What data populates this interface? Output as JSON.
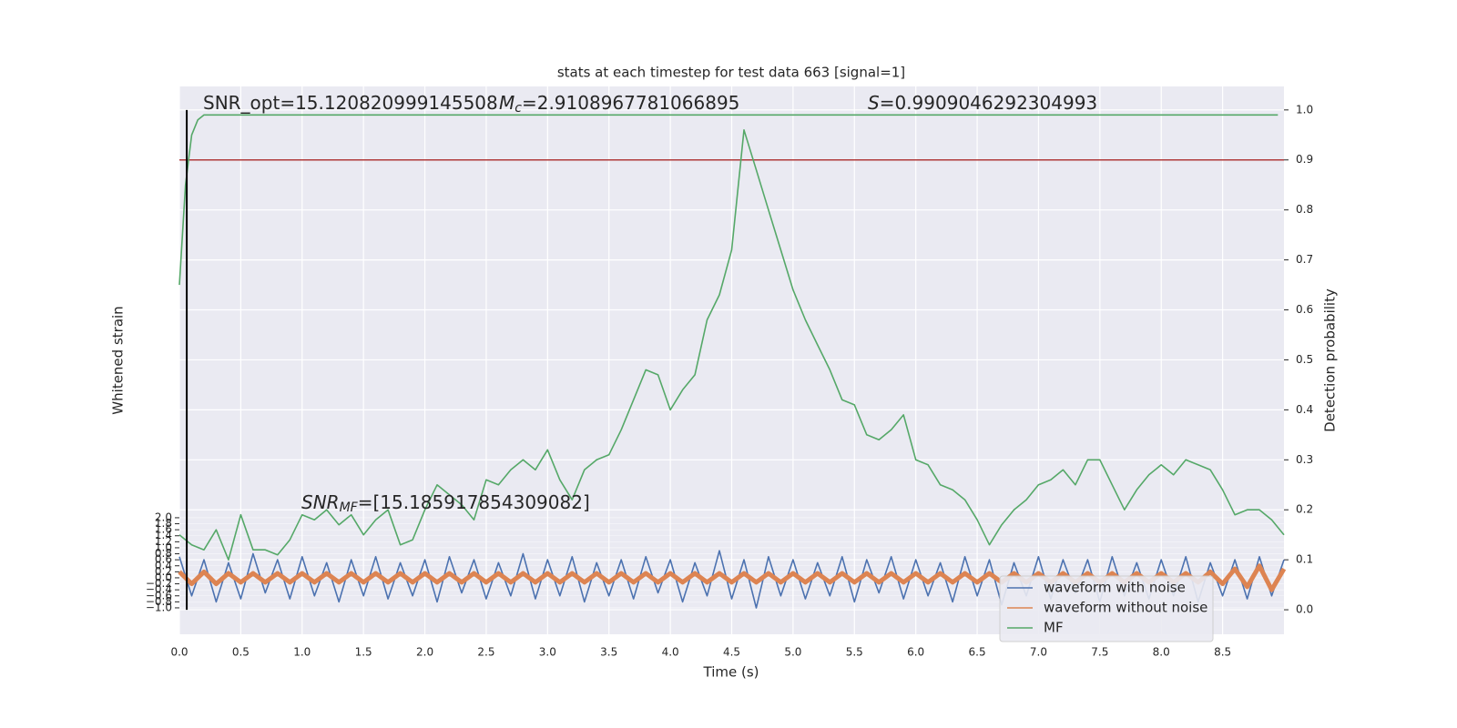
{
  "chart_data": {
    "type": "line",
    "title": "stats at each timestep for test data 663 [signal=1]",
    "xlabel": "Time (s)",
    "ylabel": "Whitened strain",
    "y2label": "Detection probability",
    "annotations": [
      {
        "text": "SNR_opt=15.120820999145508"
      },
      {
        "symbol": "M",
        "sub": "c",
        "text": "=2.9108967781066895"
      },
      {
        "symbol": "S",
        "text": "=0.9909046292304993"
      },
      {
        "symbol": "SNR",
        "sub": "MF",
        "text": "=[15.185917854309082]"
      }
    ],
    "xlim": [
      0,
      9.0
    ],
    "ylim": [
      -1.88,
      16.36
    ],
    "y2lim": [
      -0.049,
      1.047
    ],
    "xticks": [
      {
        "value": 0,
        "label": "0.0"
      },
      0.5,
      {
        "value": 1,
        "label": "1.0"
      },
      1.5,
      {
        "value": 2,
        "label": "2.0"
      },
      2.5,
      {
        "value": 3,
        "label": "3.0"
      },
      3.5,
      {
        "value": 4,
        "label": "4.0"
      },
      4.5,
      {
        "value": 5,
        "label": "5.0"
      },
      5.5,
      {
        "value": 6,
        "label": "6.0"
      },
      6.5,
      {
        "value": 7,
        "label": "7.0"
      },
      7.5,
      {
        "value": 8,
        "label": "8.0"
      },
      8.5
    ],
    "yticks": [
      {
        "value": -1.0,
        "label": "−1.0"
      },
      {
        "value": -0.8,
        "label": "−0.8"
      },
      {
        "value": -0.6,
        "label": "−0.6"
      },
      {
        "value": -0.4,
        "label": "−0.4"
      },
      {
        "value": -0.2,
        "label": "−0.2"
      },
      {
        "value": 0,
        "label": "0.0"
      },
      {
        "value": 0.2,
        "label": "0.2"
      },
      {
        "value": 0.4,
        "label": "0.4"
      },
      {
        "value": 0.6,
        "label": "0.6"
      },
      {
        "value": 0.8,
        "label": "0.8"
      },
      {
        "value": 1,
        "label": "1.0"
      },
      {
        "value": 1.2,
        "label": "1.2"
      },
      {
        "value": 1.4,
        "label": "1.4"
      },
      {
        "value": 1.6,
        "label": "1.6"
      },
      {
        "value": 1.8,
        "label": "1.8"
      },
      {
        "value": 2,
        "label": "2.0"
      }
    ],
    "y2ticks": [
      {
        "value": 0,
        "label": "0.0"
      },
      0.1,
      0.2,
      0.3,
      0.4,
      0.5,
      0.6,
      0.7,
      0.8,
      0.9,
      {
        "value": 1,
        "label": "1.0"
      }
    ],
    "grid": true,
    "legend": "lower right",
    "hline": {
      "value": 0.9,
      "axis": "y2",
      "color": "#b03a3a"
    },
    "vline": {
      "value": 0.06,
      "color": "#000000"
    },
    "x": [
      0.0,
      0.1,
      0.2,
      0.3,
      0.4,
      0.5,
      0.6,
      0.7,
      0.8,
      0.9,
      1.0,
      1.1,
      1.2,
      1.3,
      1.4,
      1.5,
      1.6,
      1.7,
      1.8,
      1.9,
      2.0,
      2.1,
      2.2,
      2.3,
      2.4,
      2.5,
      2.6,
      2.7,
      2.8,
      2.9,
      3.0,
      3.1,
      3.2,
      3.3,
      3.4,
      3.5,
      3.6,
      3.7,
      3.8,
      3.9,
      4.0,
      4.1,
      4.2,
      4.3,
      4.4,
      4.5,
      4.6,
      4.7,
      4.8,
      4.9,
      5.0,
      5.1,
      5.2,
      5.3,
      5.4,
      5.5,
      5.6,
      5.7,
      5.8,
      5.9,
      6.0,
      6.1,
      6.2,
      6.3,
      6.4,
      6.5,
      6.6,
      6.7,
      6.8,
      6.9,
      7.0,
      7.1,
      7.2,
      7.3,
      7.4,
      7.5,
      7.6,
      7.7,
      7.8,
      7.9,
      8.0,
      8.1,
      8.2,
      8.3,
      8.4,
      8.5,
      8.6,
      8.7,
      8.8,
      8.9,
      9.0
    ],
    "series": [
      {
        "name": "waveform with noise",
        "color": "#4c72b0",
        "axis": "y",
        "values": [
          0.7,
          -0.6,
          0.6,
          -0.8,
          0.5,
          -0.7,
          0.8,
          -0.5,
          0.6,
          -0.7,
          0.7,
          -0.6,
          0.5,
          -0.8,
          0.6,
          -0.6,
          0.7,
          -0.7,
          0.5,
          -0.6,
          0.6,
          -0.8,
          0.7,
          -0.5,
          0.6,
          -0.7,
          0.5,
          -0.6,
          0.8,
          -0.7,
          0.6,
          -0.6,
          0.7,
          -0.8,
          0.5,
          -0.6,
          0.6,
          -0.7,
          0.7,
          -0.5,
          0.6,
          -0.8,
          0.5,
          -0.6,
          0.9,
          -0.7,
          0.6,
          -1.0,
          0.7,
          -0.6,
          0.6,
          -0.7,
          0.5,
          -0.6,
          0.7,
          -0.8,
          0.6,
          -0.5,
          0.7,
          -0.7,
          0.6,
          -0.6,
          0.5,
          -0.8,
          0.7,
          -0.6,
          0.6,
          -0.9,
          0.5,
          -0.6,
          0.7,
          -0.7,
          0.6,
          -0.5,
          0.6,
          -0.8,
          0.7,
          -0.6,
          0.5,
          -0.7,
          0.6,
          -0.6,
          0.7,
          -0.8,
          0.5,
          -0.6,
          0.6,
          -0.7,
          0.7,
          -0.6,
          0.6
        ]
      },
      {
        "name": "waveform without noise",
        "color": "#dd8452",
        "axis": "y",
        "values": [
          0.2,
          -0.2,
          0.2,
          -0.2,
          0.15,
          -0.15,
          0.15,
          -0.15,
          0.15,
          -0.15,
          0.15,
          -0.15,
          0.15,
          -0.15,
          0.15,
          -0.15,
          0.15,
          -0.15,
          0.15,
          -0.15,
          0.15,
          -0.15,
          0.15,
          -0.15,
          0.15,
          -0.15,
          0.15,
          -0.15,
          0.15,
          -0.15,
          0.15,
          -0.15,
          0.15,
          -0.15,
          0.15,
          -0.15,
          0.15,
          -0.15,
          0.15,
          -0.15,
          0.15,
          -0.15,
          0.15,
          -0.15,
          0.15,
          -0.15,
          0.15,
          -0.15,
          0.15,
          -0.15,
          0.15,
          -0.15,
          0.15,
          -0.15,
          0.15,
          -0.15,
          0.15,
          -0.15,
          0.15,
          -0.15,
          0.15,
          -0.15,
          0.15,
          -0.15,
          0.15,
          -0.15,
          0.15,
          -0.15,
          0.15,
          -0.15,
          0.15,
          -0.15,
          0.15,
          -0.15,
          0.15,
          -0.15,
          0.15,
          -0.15,
          0.15,
          -0.15,
          0.15,
          -0.15,
          0.15,
          -0.15,
          0.2,
          -0.2,
          0.3,
          -0.3,
          0.4,
          -0.4,
          0.3
        ]
      },
      {
        "name": "MF",
        "color": "#55a868",
        "axis": "y2",
        "values": [
          0.15,
          0.13,
          0.12,
          0.16,
          0.1,
          0.19,
          0.12,
          0.12,
          0.11,
          0.14,
          0.19,
          0.18,
          0.2,
          0.17,
          0.19,
          0.15,
          0.18,
          0.2,
          0.13,
          0.14,
          0.2,
          0.25,
          0.23,
          0.21,
          0.18,
          0.26,
          0.25,
          0.28,
          0.3,
          0.28,
          0.32,
          0.26,
          0.22,
          0.28,
          0.3,
          0.31,
          0.36,
          0.42,
          0.48,
          0.47,
          0.4,
          0.44,
          0.47,
          0.58,
          0.63,
          0.72,
          0.96,
          0.88,
          0.8,
          0.72,
          0.64,
          0.58,
          0.53,
          0.48,
          0.42,
          0.41,
          0.35,
          0.34,
          0.36,
          0.39,
          0.3,
          0.29,
          0.25,
          0.24,
          0.22,
          0.18,
          0.13,
          0.17,
          0.2,
          0.22,
          0.25,
          0.26,
          0.28,
          0.25,
          0.3,
          0.3,
          0.25,
          0.2,
          0.24,
          0.27,
          0.29,
          0.27,
          0.3,
          0.29,
          0.28,
          0.24,
          0.19,
          0.2,
          0.2,
          0.18,
          0.15
        ]
      },
      {
        "color": "#55a868",
        "axis": "y2",
        "x": [
          0.0,
          0.05,
          0.1,
          0.15,
          0.2,
          8.95
        ],
        "values": [
          0.65,
          0.85,
          0.95,
          0.98,
          0.99,
          0.99
        ]
      }
    ]
  }
}
